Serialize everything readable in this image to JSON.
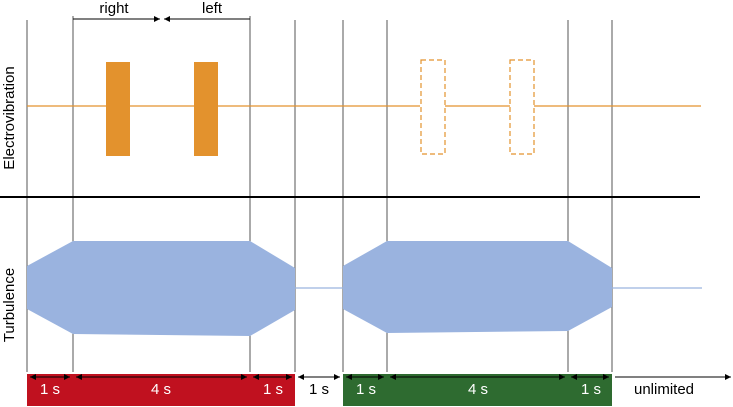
{
  "labels": {
    "top_right": "right",
    "top_left": "left",
    "row_top": "Electrovibration",
    "row_bottom": "Turbulence"
  },
  "timeline": [
    {
      "label": "1 s",
      "group": "red"
    },
    {
      "label": "4 s",
      "group": "red"
    },
    {
      "label": "1 s",
      "group": "red"
    },
    {
      "label": "1 s",
      "group": "white"
    },
    {
      "label": "1 s",
      "group": "green"
    },
    {
      "label": "4 s",
      "group": "green"
    },
    {
      "label": "1 s",
      "group": "green"
    },
    {
      "label": "unlimited",
      "group": "white"
    }
  ],
  "colors": {
    "red_bar": "#c0111f",
    "green_bar": "#2e6b30",
    "electro": "#e3922d",
    "turbulence": "#9ab3df",
    "axis": "#000000",
    "grid": "#555555"
  }
}
